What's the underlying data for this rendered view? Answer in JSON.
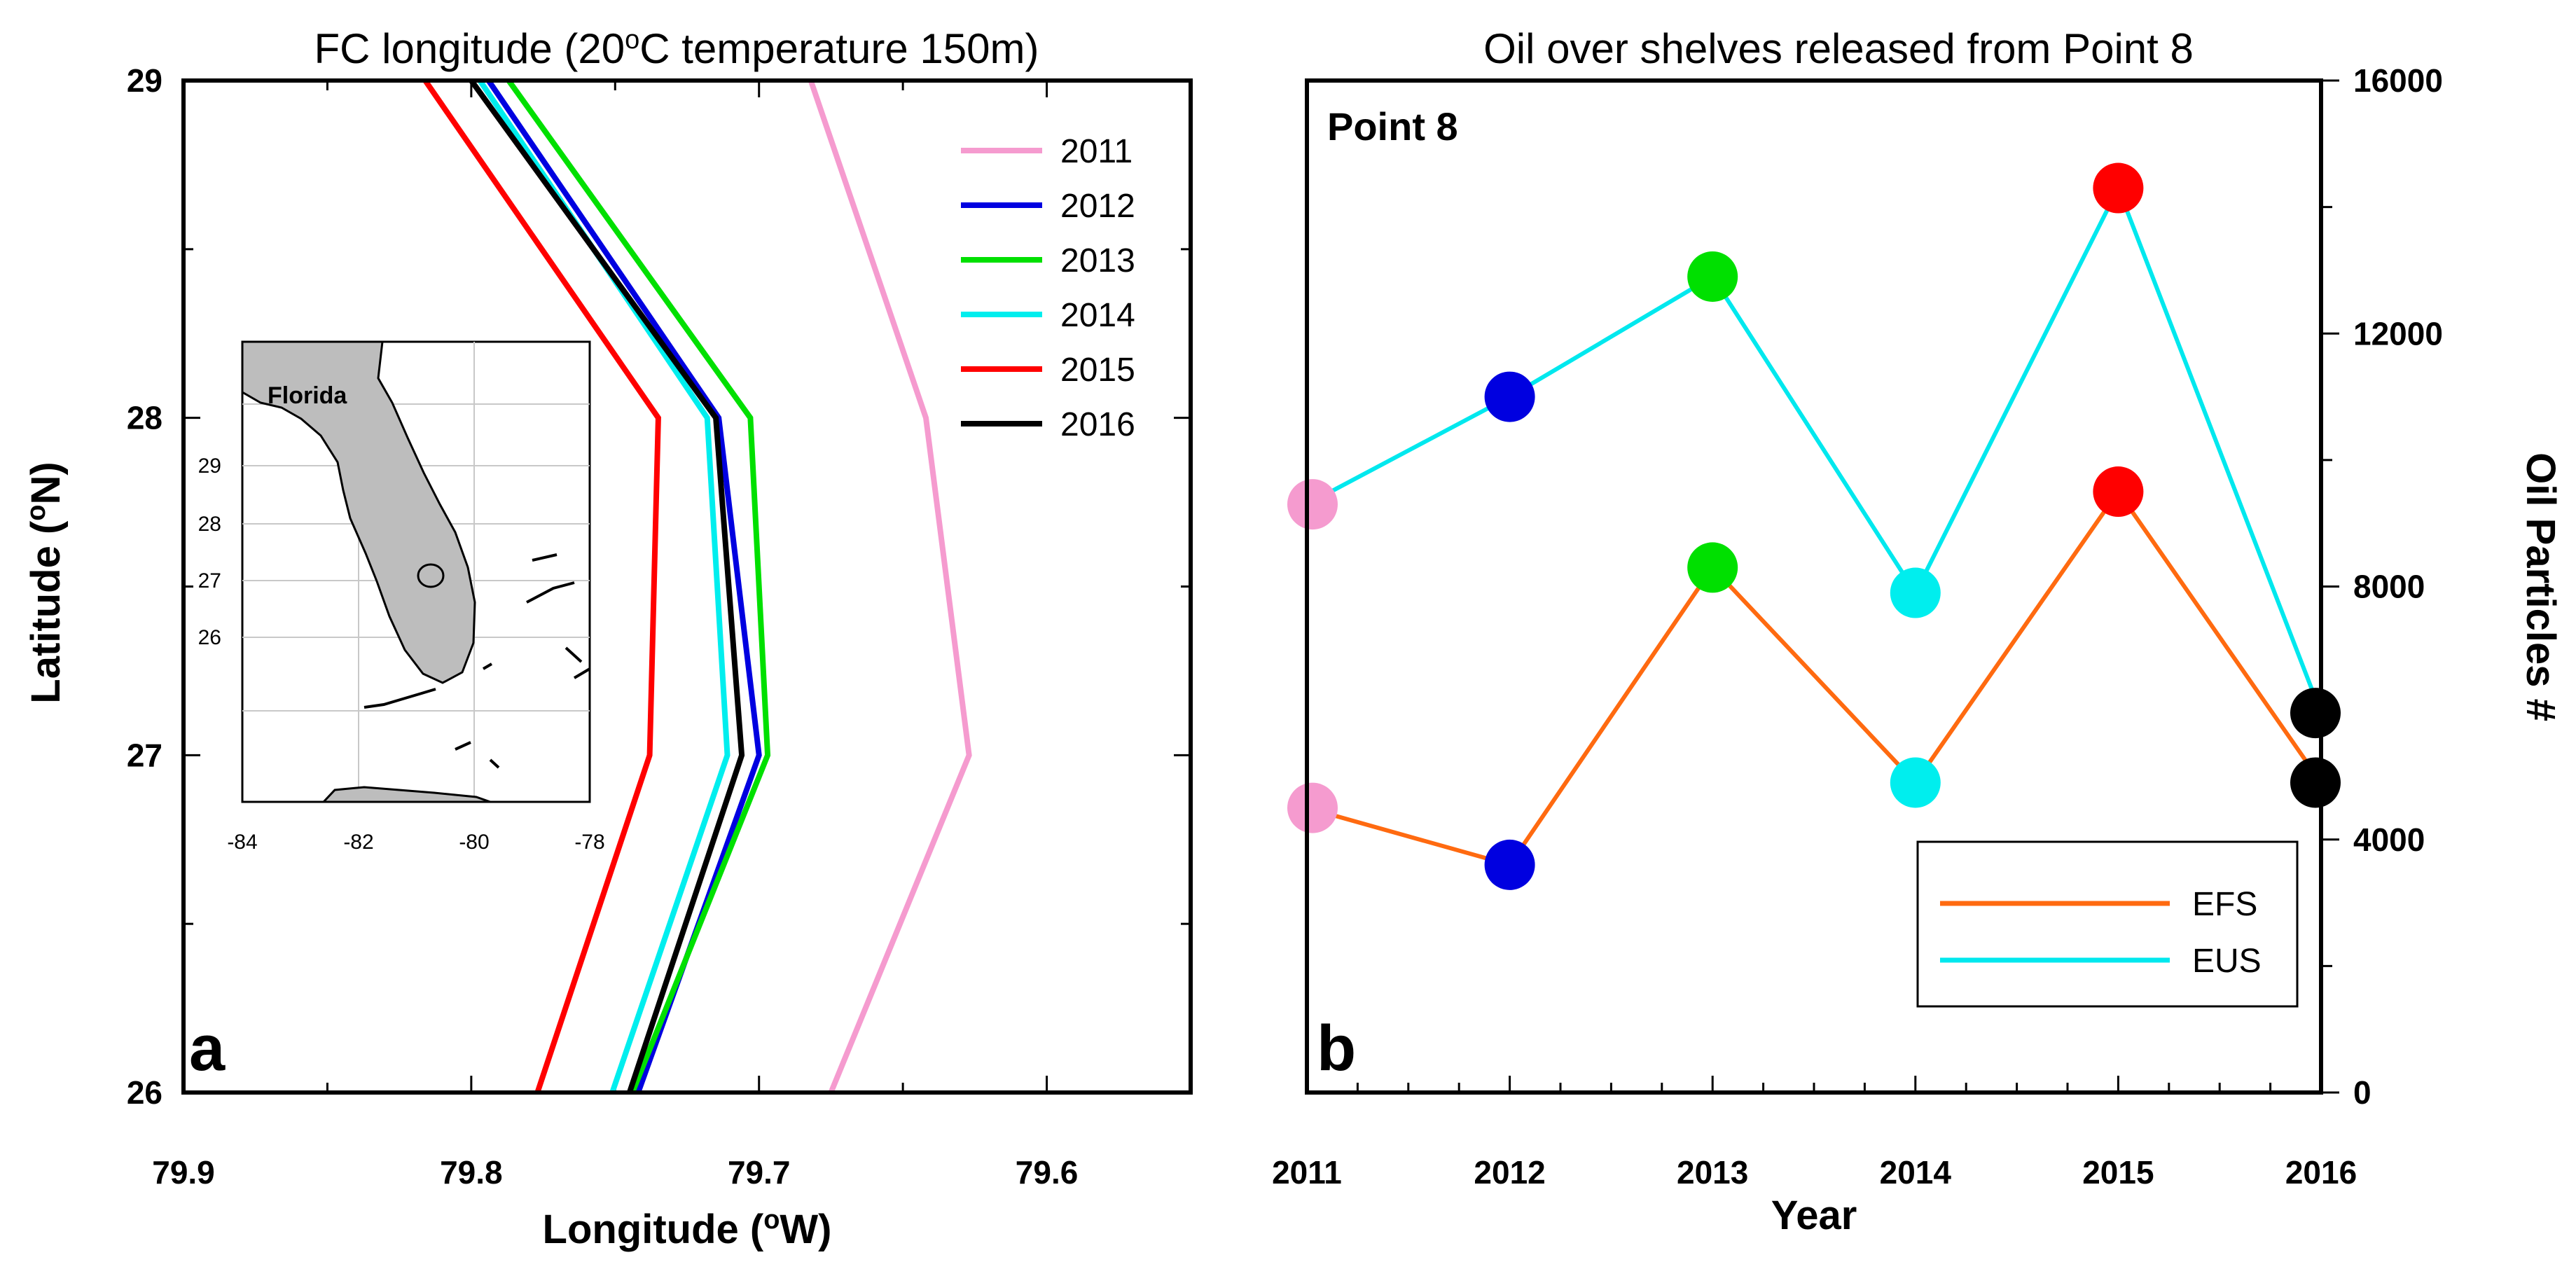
{
  "chart_data": [
    {
      "panel": "a",
      "type": "line",
      "title": "FC longitude (20°C temperature 150m)",
      "title_parts": {
        "prefix": "FC longitude (20",
        "sup": "o",
        "suffix": "C temperature 150m)"
      },
      "xlabel_parts": {
        "prefix": "Longitude (",
        "sup": "o",
        "suffix": "W)"
      },
      "ylabel_parts": {
        "prefix": "Latitude (",
        "sup": "o",
        "suffix": "N)"
      },
      "xlim": [
        79.9,
        79.55
      ],
      "ylim": [
        26,
        29
      ],
      "xticks": [
        "79.9",
        "79.8",
        "79.7",
        "79.6"
      ],
      "xtick_values": [
        79.9,
        79.8,
        79.7,
        79.6
      ],
      "yticks": [
        "26",
        "27",
        "28",
        "29"
      ],
      "ytick_values": [
        26,
        27,
        28,
        29
      ],
      "y": [
        29,
        28,
        27,
        26
      ],
      "series": [
        {
          "name": "2011",
          "color": "#f59bcf",
          "x": [
            79.682,
            79.642,
            79.627,
            79.675
          ]
        },
        {
          "name": "2012",
          "color": "#0000e0",
          "x": [
            79.794,
            79.714,
            79.7,
            79.742
          ]
        },
        {
          "name": "2013",
          "color": "#00e000",
          "x": [
            79.787,
            79.703,
            79.697,
            79.744
          ]
        },
        {
          "name": "2014",
          "color": "#00eeee",
          "x": [
            79.797,
            79.718,
            79.711,
            79.751
          ]
        },
        {
          "name": "2015",
          "color": "#ff0000",
          "x": [
            79.816,
            79.735,
            79.738,
            79.777
          ]
        },
        {
          "name": "2016",
          "color": "#000000",
          "x": [
            79.8,
            79.715,
            79.706,
            79.745
          ]
        }
      ],
      "panel_label": "a",
      "inset": {
        "label": "Florida",
        "xticks": [
          "-84",
          "-82",
          "-80",
          "-78"
        ],
        "yticks": [
          "29",
          "28",
          "27",
          "26"
        ],
        "land_color": "#bdbdbd"
      }
    },
    {
      "panel": "b",
      "type": "line",
      "title": "Oil over shelves released from Point 8",
      "xlabel": "Year",
      "ylabel": "Oil Particles #",
      "annotation": "Point 8",
      "panel_label": "b",
      "xlim": [
        2011,
        2016
      ],
      "ylim": [
        0,
        16000
      ],
      "categories": [
        "2011",
        "2012",
        "2013",
        "2014",
        "2015",
        "2016"
      ],
      "x": [
        2011,
        2012,
        2013,
        2014,
        2015,
        2016
      ],
      "yticks": [
        "0",
        "4000",
        "8000",
        "12000",
        "16000"
      ],
      "ytick_values": [
        0,
        4000,
        8000,
        12000,
        16000
      ],
      "series": [
        {
          "name": "EFS",
          "color": "#ff6a10",
          "values": [
            4500,
            3600,
            8300,
            4900,
            9500,
            4900
          ]
        },
        {
          "name": "EUS",
          "color": "#00e8ee",
          "values": [
            9300,
            11000,
            12900,
            7900,
            14300,
            6000
          ]
        }
      ],
      "marker_colors": [
        "#f59bcf",
        "#0000e0",
        "#00e000",
        "#00eeee",
        "#ff0000",
        "#000000"
      ]
    }
  ]
}
